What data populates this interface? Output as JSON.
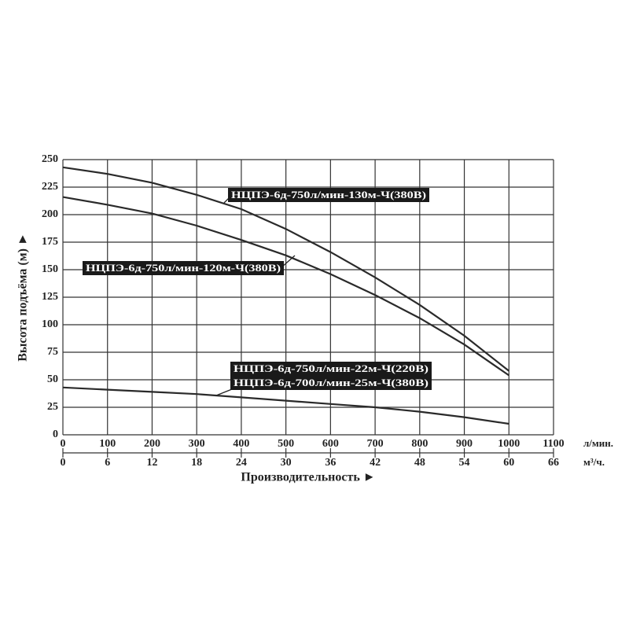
{
  "chart_data": {
    "type": "line",
    "y_label": "Высота подъёма (м) ►",
    "x_label": "Производительность ►",
    "x_unit": "л/мин.",
    "x2_unit": "м³/ч.",
    "x": [
      0,
      100,
      200,
      300,
      400,
      500,
      600,
      700,
      800,
      900,
      1000
    ],
    "xlim": [
      0,
      1100
    ],
    "xticks": [
      0,
      100,
      200,
      300,
      400,
      500,
      600,
      700,
      800,
      900,
      1000,
      1100
    ],
    "x2lim": [
      0,
      66
    ],
    "x2ticks": [
      0,
      6,
      12,
      18,
      24,
      30,
      36,
      42,
      48,
      54,
      60,
      66
    ],
    "ylim": [
      0,
      250
    ],
    "yticks": [
      0,
      25,
      50,
      75,
      100,
      125,
      150,
      175,
      200,
      225,
      250
    ],
    "grid": true,
    "series": [
      {
        "name": "НЦПЭ-6д-750л/мин-130м-Ч(380В)",
        "color": "#2a2a2a",
        "values": [
          243,
          237,
          229,
          218,
          205,
          187,
          166,
          143,
          118,
          90,
          58
        ]
      },
      {
        "name": "НЦПЭ-6д-750л/мин-120м-Ч(380В)",
        "color": "#2a2a2a",
        "values": [
          216,
          209,
          201,
          190,
          177,
          163,
          146,
          127,
          106,
          82,
          54
        ]
      },
      {
        "names": [
          "НЦПЭ-6д-750л/мин-22м-Ч(220В)",
          "НЦПЭ-6д-700л/мин-25м-Ч(380В)"
        ],
        "color": "#2a2a2a",
        "values": [
          43,
          41,
          39,
          37,
          34,
          31,
          28,
          25,
          21,
          16,
          10
        ]
      }
    ]
  }
}
